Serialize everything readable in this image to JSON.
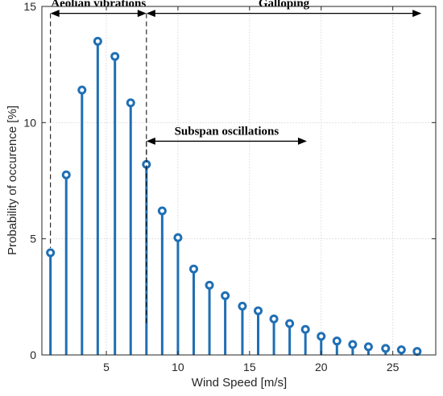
{
  "chart_data": {
    "type": "stem",
    "title": "",
    "xlabel": "Wind Speed [m/s]",
    "ylabel": "Probability of occurence [%]",
    "xlim": [
      0.5,
      28
    ],
    "ylim": [
      0,
      15
    ],
    "xticks": [
      5,
      10,
      15,
      20,
      25
    ],
    "yticks": [
      0,
      5,
      10,
      15
    ],
    "grid": true,
    "series": [
      {
        "color": "#1f6fb4",
        "marker": "open-circle",
        "x": [
          1.1,
          2.2,
          3.3,
          4.4,
          5.6,
          6.7,
          7.8,
          8.9,
          10.0,
          11.1,
          12.2,
          13.3,
          14.5,
          15.6,
          16.7,
          17.8,
          18.9,
          20.0,
          21.1,
          22.2,
          23.3,
          24.5,
          25.6,
          26.7
        ],
        "values": [
          4.4,
          7.75,
          11.4,
          13.5,
          12.85,
          10.85,
          8.2,
          6.2,
          5.05,
          3.7,
          3.0,
          2.55,
          2.1,
          1.9,
          1.55,
          1.35,
          1.1,
          0.8,
          0.6,
          0.45,
          0.35,
          0.28,
          0.22,
          0.15
        ]
      }
    ],
    "annotations": [
      {
        "label": "Aeolian vibrations",
        "x_start": 1.1,
        "x_end": 7.8,
        "y": 14.7,
        "drop_lines_to": [
          4.4,
          8.2
        ]
      },
      {
        "label": "Galloping",
        "x_start": 7.8,
        "x_end": 27,
        "y": 14.7
      },
      {
        "label": "Subspan oscillations",
        "x_start": 7.8,
        "x_end": 19,
        "y": 9.2,
        "drop_lines_to": [
          1.1
        ]
      }
    ]
  }
}
